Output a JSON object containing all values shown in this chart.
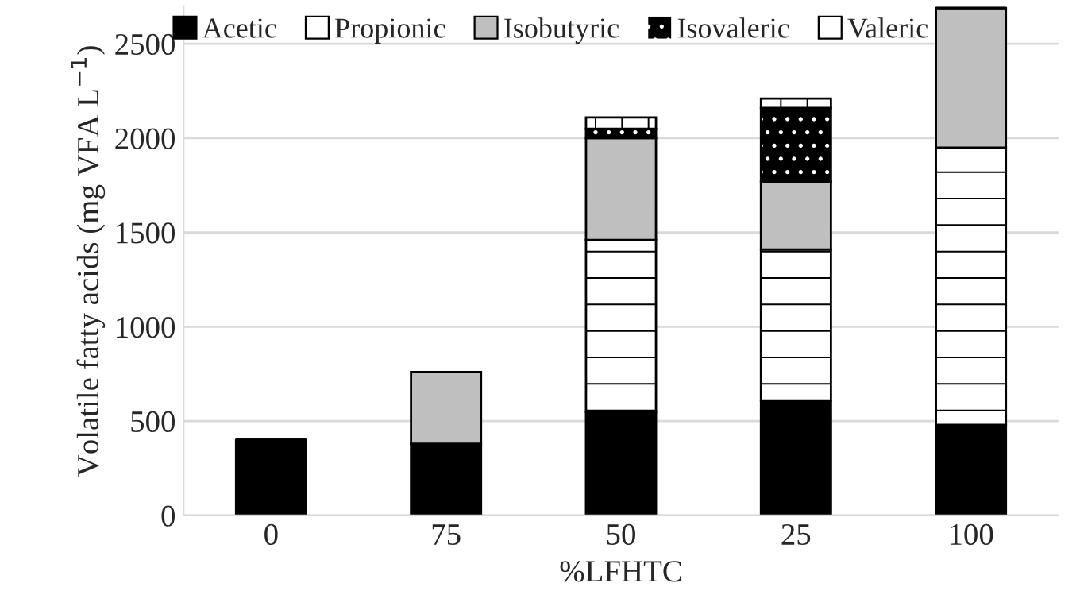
{
  "chart_data": {
    "type": "bar",
    "stacked": true,
    "xlabel": "%LFHTC",
    "ylabel": "Volatile fatty acids (mg VFA L$^{−1}$)",
    "categories": [
      "0",
      "75",
      "50",
      "25",
      "100"
    ],
    "series": [
      {
        "name": "Acetic",
        "color": "#000000",
        "values": [
          400,
          380,
          550,
          610,
          480
        ]
      },
      {
        "name": "Propionic",
        "color": "#ffffff",
        "values": [
          0,
          0,
          910,
          800,
          1470
        ]
      },
      {
        "name": "Isobutyric",
        "color": "#bfbfbf",
        "values": [
          0,
          380,
          540,
          360,
          740
        ]
      },
      {
        "name": "Isovaleric",
        "color": "#000000",
        "values": [
          0,
          0,
          50,
          390,
          0
        ]
      },
      {
        "name": "Valeric",
        "color": "#ffffff",
        "values": [
          0,
          0,
          60,
          50,
          0
        ]
      }
    ],
    "ylim": [
      0,
      2700
    ],
    "yticks": [
      0,
      500,
      1000,
      1500,
      2000,
      2500
    ],
    "grid": "y",
    "legend": "top"
  }
}
